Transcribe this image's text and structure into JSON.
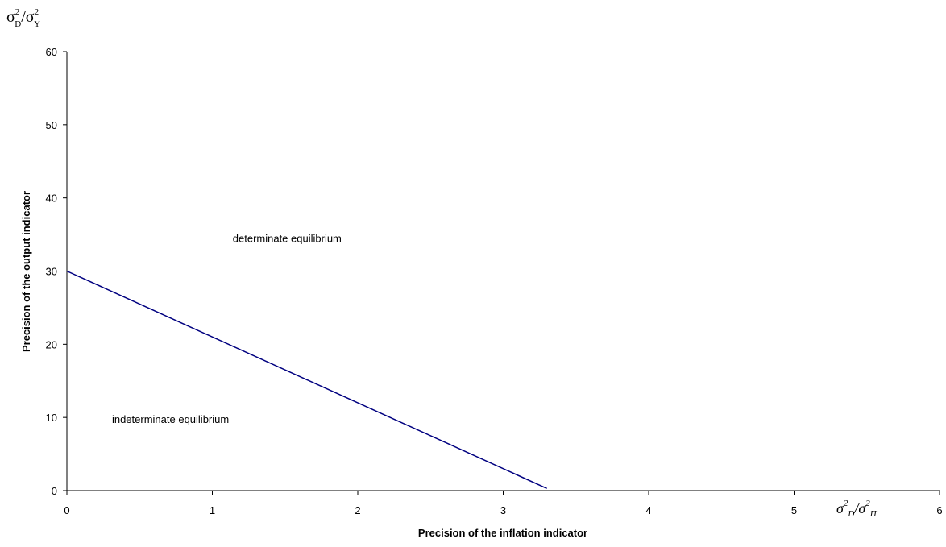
{
  "chart_data": {
    "type": "line",
    "x_axis_title": "Precision of the inflation indicator",
    "y_axis_title": "Precision of the output indicator",
    "xlim": [
      0,
      6
    ],
    "ylim": [
      0,
      60
    ],
    "x_ticks": [
      "0",
      "1",
      "2",
      "3",
      "4",
      "5",
      "6"
    ],
    "y_ticks": [
      "0",
      "10",
      "20",
      "30",
      "40",
      "50",
      "60"
    ],
    "grid": false,
    "legend": "none",
    "series": [
      {
        "x": [
          0,
          3.3
        ],
        "y": [
          30,
          0.3
        ],
        "color": "#000080"
      }
    ],
    "annotations": [
      {
        "text": "determinate equilibrium",
        "x": 1.14,
        "y": 34.5
      },
      {
        "text": "indeterminate equilibrium",
        "x": 0.31,
        "y": 9.8
      }
    ],
    "y_ratio_label": {
      "base": "σ",
      "sup": "2",
      "sub1": "D",
      "sub2": "Y"
    },
    "x_ratio_label": {
      "base": "σ",
      "sup": "2",
      "sub1": "D",
      "sub2": "Π"
    }
  }
}
